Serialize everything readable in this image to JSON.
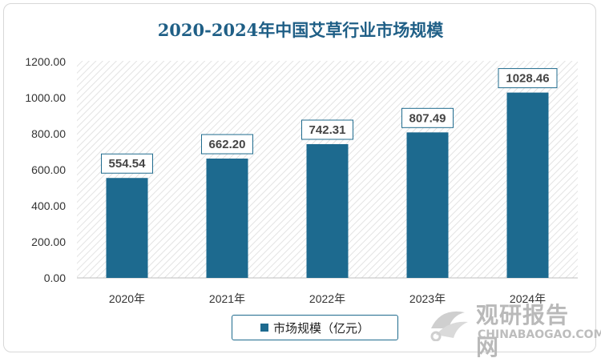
{
  "chart_data": {
    "type": "bar",
    "title": "2020-2024年中国艾草行业市场规模",
    "categories": [
      "2020年",
      "2021年",
      "2022年",
      "2023年",
      "2024年"
    ],
    "series": [
      {
        "name": "市场规模（亿元）",
        "values": [
          554.54,
          662.2,
          742.31,
          807.49,
          1028.46
        ]
      }
    ],
    "data_labels": [
      "554.54",
      "662.20",
      "742.31",
      "807.49",
      "1028.46"
    ],
    "ylim": [
      0,
      1200
    ],
    "yticks": [
      "0.00",
      "200.00",
      "400.00",
      "600.00",
      "800.00",
      "1000.00",
      "1200.00"
    ],
    "xlabel": "",
    "ylabel": "",
    "grid": false,
    "legend_position": "bottom",
    "colors": {
      "bar": "#1d6a8f",
      "title": "#1f5f86",
      "label_border": "#1f6b8e"
    }
  },
  "watermark": {
    "cn": "观研报告网",
    "en": "CHINABAOGAO.COM"
  }
}
